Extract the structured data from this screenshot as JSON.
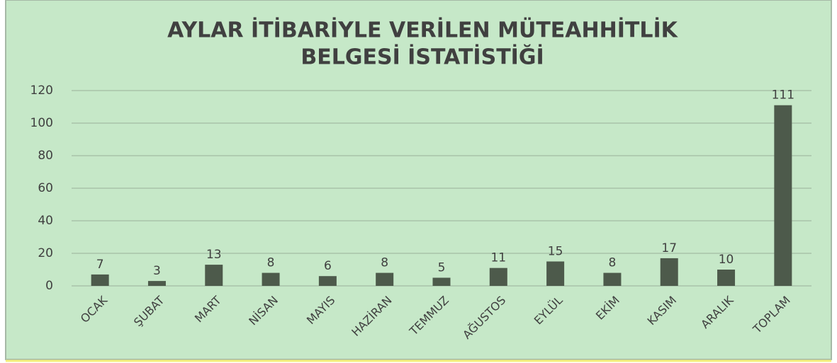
{
  "chart_data": {
    "type": "bar",
    "title": [
      "AYLAR İTİBARİYLE VERİLEN MÜTEAHHİTLİK",
      "BELGESİ İSTATİSTİĞİ"
    ],
    "categories": [
      "OCAK",
      "ŞUBAT",
      "MART",
      "NİSAN",
      "MAYIS",
      "HAZİRAN",
      "TEMMUZ",
      "AĞUSTOS",
      "EYLÜL",
      "EKİM",
      "KASIM",
      "ARALIK",
      "TOPLAM"
    ],
    "values": [
      7,
      3,
      13,
      8,
      6,
      8,
      5,
      11,
      15,
      8,
      17,
      10,
      111
    ],
    "color": "#4d5a4b",
    "ylim": [
      0,
      120
    ],
    "yticks": [
      0,
      20,
      40,
      60,
      80,
      100,
      120
    ],
    "grid": true
  }
}
